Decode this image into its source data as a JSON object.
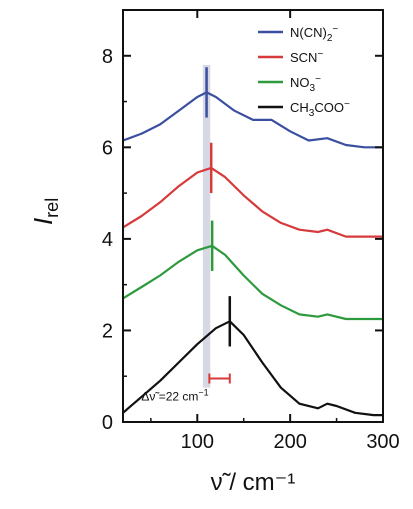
{
  "chart_data": {
    "type": "line",
    "xlabel": "ν̃ / cm⁻¹",
    "ylabel": "I",
    "ylabel_sub": "rel",
    "xlim": [
      20,
      300
    ],
    "ylim": [
      0,
      9
    ],
    "x_ticks": [
      100,
      200,
      300
    ],
    "y_ticks": [
      0,
      2,
      4,
      6,
      8
    ],
    "grid": false,
    "legend_position": "top-right",
    "series": [
      {
        "name": "N(CN)2−",
        "legend": {
          "main": "N(CN)",
          "sub": "2",
          "sup": "−"
        },
        "color": "#3b4fa0",
        "peak_marker_x": 110,
        "x": [
          20,
          40,
          60,
          80,
          100,
          110,
          120,
          140,
          160,
          180,
          200,
          220,
          240,
          260,
          280,
          300
        ],
        "y": [
          6.15,
          6.3,
          6.5,
          6.8,
          7.1,
          7.2,
          7.1,
          6.8,
          6.6,
          6.6,
          6.35,
          6.15,
          6.2,
          6.05,
          6.0,
          6.0
        ]
      },
      {
        "name": "SCN−",
        "legend": {
          "main": "SCN",
          "sub": "",
          "sup": "−"
        },
        "color": "#d63a3a",
        "peak_marker_x": 115,
        "x": [
          20,
          40,
          60,
          80,
          100,
          115,
          130,
          150,
          170,
          190,
          210,
          230,
          240,
          260,
          280,
          300
        ],
        "y": [
          4.25,
          4.5,
          4.8,
          5.15,
          5.45,
          5.55,
          5.35,
          4.95,
          4.6,
          4.35,
          4.2,
          4.15,
          4.2,
          4.05,
          4.05,
          4.05
        ]
      },
      {
        "name": "NO3−",
        "legend": {
          "main": "NO",
          "sub": "3",
          "sup": "−"
        },
        "color": "#2e9a3e",
        "peak_marker_x": 116,
        "x": [
          20,
          40,
          60,
          80,
          100,
          116,
          130,
          150,
          170,
          190,
          210,
          230,
          240,
          260,
          280,
          300
        ],
        "y": [
          2.7,
          2.95,
          3.2,
          3.5,
          3.75,
          3.85,
          3.65,
          3.2,
          2.8,
          2.55,
          2.35,
          2.3,
          2.35,
          2.25,
          2.25,
          2.25
        ]
      },
      {
        "name": "CH3COO−",
        "legend": {
          "main": "CH",
          "sub": "3",
          "main2": "COO",
          "sup": "−"
        },
        "color": "#111111",
        "peak_marker_x": 135,
        "x": [
          20,
          40,
          60,
          80,
          100,
          120,
          135,
          150,
          170,
          190,
          210,
          230,
          240,
          250,
          270,
          290,
          300
        ],
        "y": [
          0.2,
          0.55,
          0.9,
          1.3,
          1.7,
          2.05,
          2.2,
          1.9,
          1.3,
          0.75,
          0.4,
          0.3,
          0.4,
          0.35,
          0.2,
          0.15,
          0.15
        ]
      }
    ],
    "shaded_band_x": [
      106,
      114
    ],
    "annotation": {
      "text_main": "Δν̃ =22 cm",
      "text_sup": "−1",
      "x_start": 113,
      "x_end": 135,
      "y": 0.95
    }
  }
}
